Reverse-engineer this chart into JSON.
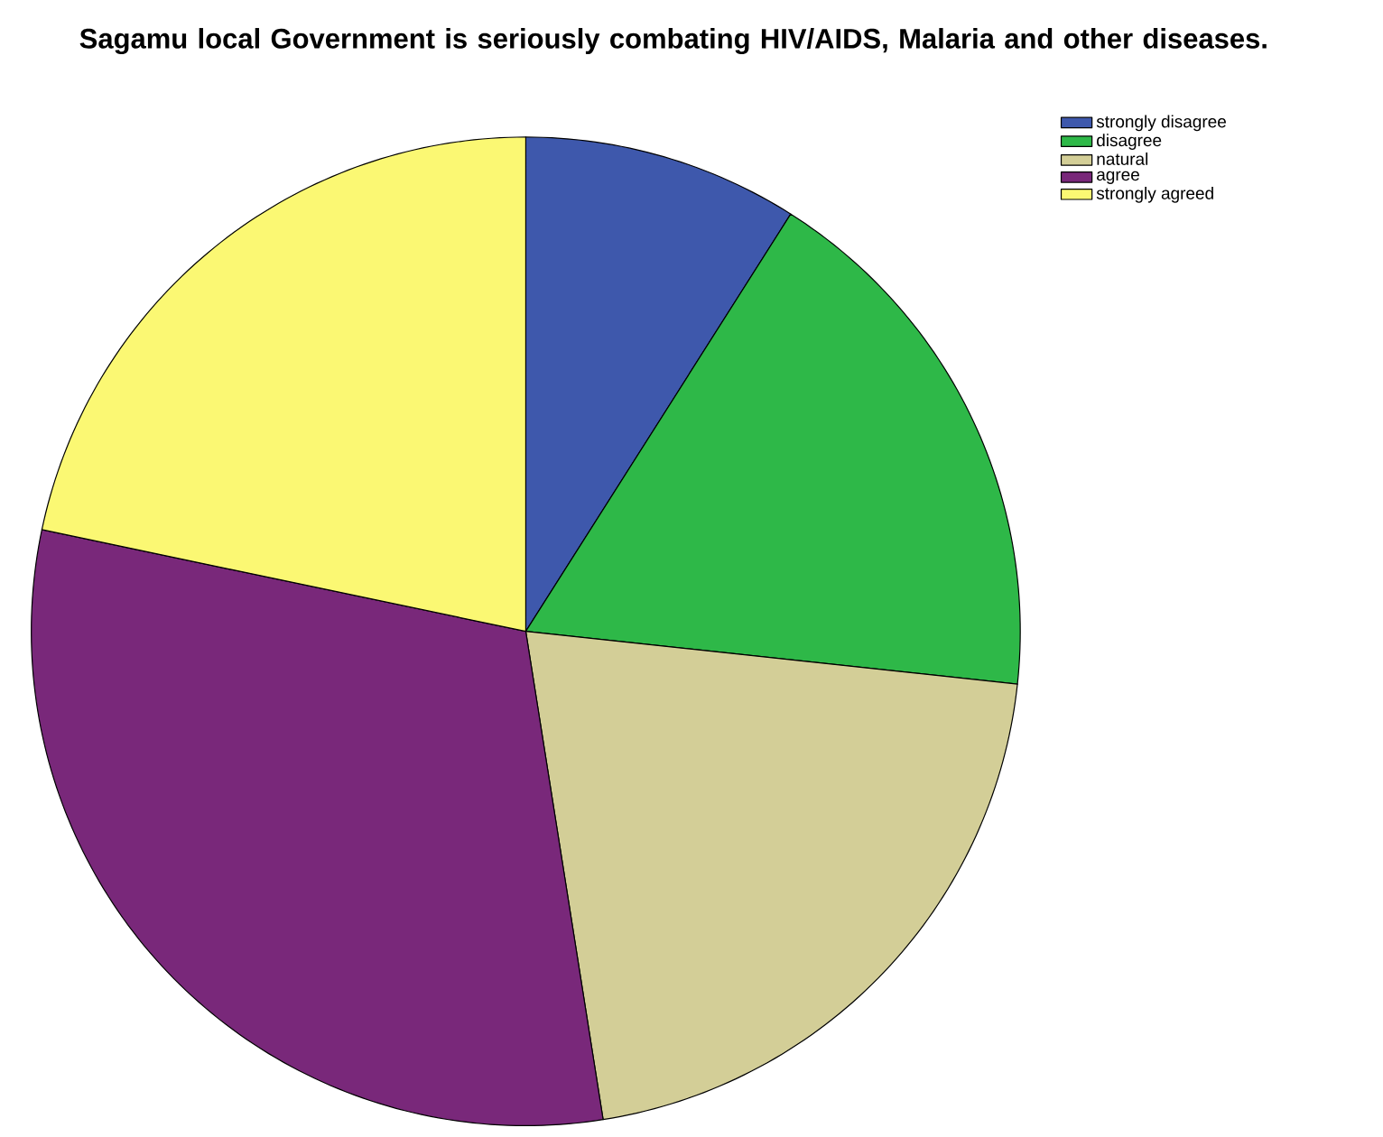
{
  "chart_data": {
    "type": "pie",
    "title": "Sagamu local Government is seriously combating HIV/AIDS, Malaria and other diseases.",
    "categories": [
      "strongly disagree",
      "disagree",
      "natural",
      "agree",
      "strongly agreed"
    ],
    "values": [
      9.0,
      17.7,
      20.8,
      30.8,
      21.7
    ],
    "colors": [
      "#3e58ac",
      "#2eb848",
      "#d3ce97",
      "#79287a",
      "#fbf873"
    ],
    "legend": "top right"
  }
}
